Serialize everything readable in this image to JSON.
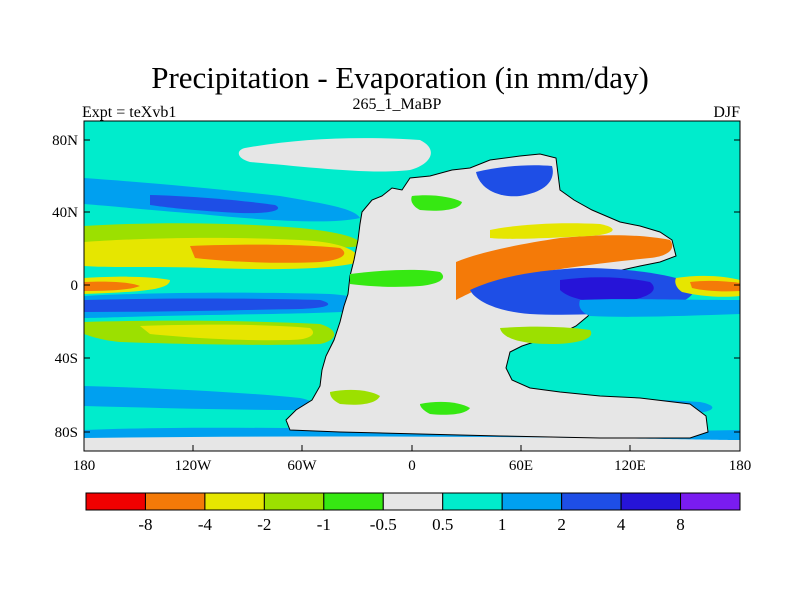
{
  "title": "Precipitation - Evaporation (in mm/day)",
  "subtitle": "265_1_MaBP",
  "left_label": "Expt = teXvb1",
  "right_label": "DJF",
  "colors": {
    "background_band": "#00eccc",
    "sea_ice_band": "#e8e8e8",
    "land": "#e8e8e8",
    "coast": "#000000"
  },
  "axes": {
    "x_ticks": [
      "180",
      "120W",
      "60W",
      "0",
      "60E",
      "120E",
      "180"
    ],
    "y_ticks": [
      "80N",
      "40N",
      "0",
      "40S",
      "80S"
    ]
  },
  "colorbar": {
    "colors": [
      "#f00000",
      "#f47a08",
      "#e6e600",
      "#9ce000",
      "#36e812",
      "#e6e6e6",
      "#00eccc",
      "#00a0f0",
      "#1e4ee6",
      "#2614d8",
      "#7a1cf0"
    ],
    "labels": [
      "-8",
      "-4",
      "-2",
      "-1",
      "-0.5",
      "0.5",
      "1",
      "2",
      "4",
      "8"
    ]
  }
}
